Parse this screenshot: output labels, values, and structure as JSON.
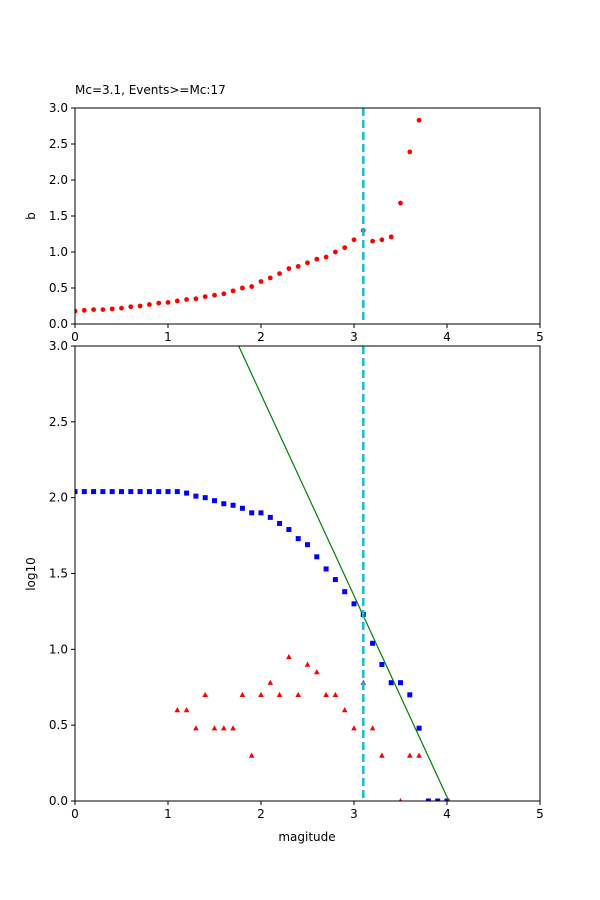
{
  "chart_data": [
    {
      "type": "scatter",
      "title": "Mc=3.1, Events>=Mc:17",
      "xlabel": "",
      "ylabel": "b",
      "xlim": [
        0,
        5
      ],
      "ylim": [
        0,
        3
      ],
      "x_ticks": [
        "0",
        "1",
        "2",
        "3",
        "4",
        "5"
      ],
      "y_ticks": [
        "0.0",
        "0.5",
        "1.0",
        "1.5",
        "2.0",
        "2.5",
        "3.0"
      ],
      "series": [
        {
          "color": "#ff0000",
          "marker": "circle",
          "x": [
            0.0,
            0.1,
            0.2,
            0.3,
            0.4,
            0.5,
            0.6,
            0.7,
            0.8,
            0.9,
            1.0,
            1.1,
            1.2,
            1.3,
            1.4,
            1.5,
            1.6,
            1.7,
            1.8,
            1.9,
            2.0,
            2.1,
            2.2,
            2.3,
            2.4,
            2.5,
            2.6,
            2.7,
            2.8,
            2.9,
            3.0,
            3.1,
            3.2,
            3.3,
            3.4,
            3.5,
            3.6,
            3.7
          ],
          "values": [
            0.18,
            0.19,
            0.2,
            0.2,
            0.21,
            0.22,
            0.24,
            0.25,
            0.27,
            0.29,
            0.3,
            0.32,
            0.34,
            0.35,
            0.38,
            0.4,
            0.42,
            0.46,
            0.5,
            0.52,
            0.59,
            0.64,
            0.7,
            0.77,
            0.8,
            0.85,
            0.9,
            0.93,
            1.0,
            1.06,
            1.17,
            1.3,
            1.15,
            1.17,
            1.21,
            1.68,
            2.39,
            2.83
          ]
        }
      ],
      "vline": {
        "x": 3.1,
        "color": "#17becf",
        "style": "dashed"
      }
    },
    {
      "type": "scatter",
      "title": "",
      "xlabel": "magitude",
      "ylabel": "log10",
      "xlim": [
        0,
        5
      ],
      "ylim": [
        0,
        3
      ],
      "x_ticks": [
        "0",
        "1",
        "2",
        "3",
        "4",
        "5"
      ],
      "y_ticks": [
        "0.0",
        "0.5",
        "1.0",
        "1.5",
        "2.0",
        "2.5",
        "3.0"
      ],
      "series": [
        {
          "color": "#0000ff",
          "marker": "square",
          "x": [
            0.0,
            0.1,
            0.2,
            0.3,
            0.4,
            0.5,
            0.6,
            0.7,
            0.8,
            0.9,
            1.0,
            1.1,
            1.2,
            1.3,
            1.4,
            1.5,
            1.6,
            1.7,
            1.8,
            1.9,
            2.0,
            2.1,
            2.2,
            2.3,
            2.4,
            2.5,
            2.6,
            2.7,
            2.8,
            2.9,
            3.0,
            3.1,
            3.2,
            3.3,
            3.4,
            3.5,
            3.6,
            3.7,
            3.8,
            3.9,
            4.0
          ],
          "values": [
            2.04,
            2.04,
            2.04,
            2.04,
            2.04,
            2.04,
            2.04,
            2.04,
            2.04,
            2.04,
            2.04,
            2.04,
            2.03,
            2.01,
            2.0,
            1.98,
            1.96,
            1.95,
            1.93,
            1.9,
            1.9,
            1.87,
            1.83,
            1.79,
            1.73,
            1.69,
            1.61,
            1.53,
            1.46,
            1.38,
            1.3,
            1.23,
            1.04,
            0.9,
            0.78,
            0.78,
            0.7,
            0.48,
            0.0,
            0.0,
            0.0
          ]
        },
        {
          "color": "#ff0000",
          "marker": "triangle",
          "x": [
            1.1,
            1.2,
            1.3,
            1.4,
            1.5,
            1.6,
            1.7,
            1.8,
            1.9,
            2.0,
            2.1,
            2.2,
            2.3,
            2.4,
            2.5,
            2.6,
            2.7,
            2.8,
            2.9,
            3.0,
            3.1,
            3.2,
            3.3,
            3.5,
            3.6,
            3.7
          ],
          "values": [
            0.6,
            0.6,
            0.48,
            0.7,
            0.48,
            0.48,
            0.48,
            0.7,
            0.3,
            0.7,
            0.78,
            0.7,
            0.95,
            0.7,
            0.9,
            0.85,
            0.7,
            0.7,
            0.6,
            0.48,
            0.78,
            0.48,
            0.3,
            0.0,
            0.3,
            0.3
          ]
        },
        {
          "color": "#008000",
          "marker": "line",
          "x": [
            1.76,
            4.02
          ],
          "values": [
            3.0,
            0.0
          ]
        }
      ],
      "vline": {
        "x": 3.1,
        "color": "#17becf",
        "style": "dashed"
      }
    }
  ]
}
